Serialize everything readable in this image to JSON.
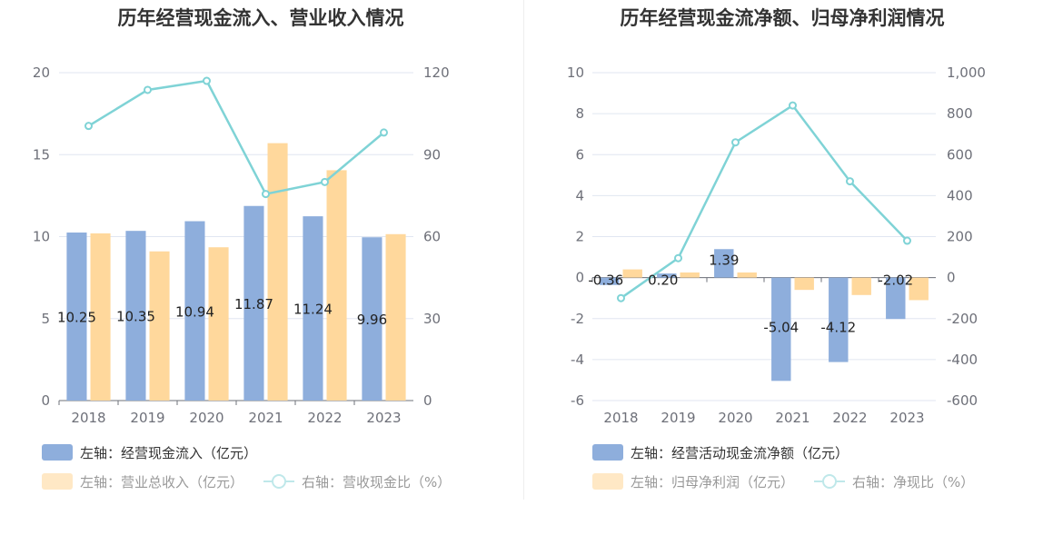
{
  "chart_data": [
    {
      "type": "bar",
      "title": "历年经营现金流入、营业收入情况",
      "categories": [
        "2018",
        "2019",
        "2020",
        "2021",
        "2022",
        "2023"
      ],
      "y_left": {
        "ticks": [
          "0",
          "5",
          "10",
          "15",
          "20"
        ],
        "min": 0,
        "max": 20
      },
      "y_right": {
        "ticks": [
          "0",
          "30",
          "60",
          "90",
          "120"
        ],
        "min": 0,
        "max": 120
      },
      "series": [
        {
          "name": "左轴：经营现金流入（亿元）",
          "kind": "bar",
          "axis": "left",
          "color": "#8eaedc",
          "values": [
            10.25,
            10.35,
            10.94,
            11.87,
            11.24,
            9.96
          ],
          "labels": [
            "10.25",
            "10.35",
            "10.94",
            "11.87",
            "11.24",
            "9.96"
          ]
        },
        {
          "name": "左轴：营业总收入（亿元）",
          "kind": "bar",
          "axis": "left",
          "color": "#ffd89c",
          "values": [
            10.2,
            9.1,
            9.35,
            15.7,
            14.05,
            10.15
          ]
        },
        {
          "name": "右轴：营收现金比（%）",
          "kind": "line",
          "axis": "right",
          "color": "#7fd3d6",
          "values": [
            100.5,
            113.7,
            117.0,
            75.6,
            80.0,
            98.1
          ]
        }
      ],
      "legend": {
        "position": "bottom-left",
        "muted_series": [
          1,
          2
        ]
      }
    },
    {
      "type": "bar",
      "title": "历年经营现金流净额、归母净利润情况",
      "categories": [
        "2018",
        "2019",
        "2020",
        "2021",
        "2022",
        "2023"
      ],
      "y_left": {
        "ticks": [
          "-6",
          "-4",
          "-2",
          "0",
          "2",
          "4",
          "6",
          "8",
          "10"
        ],
        "min": -6,
        "max": 10
      },
      "y_right": {
        "ticks": [
          "-600",
          "-400",
          "-200",
          "0",
          "200",
          "400",
          "600",
          "800",
          "1,000"
        ],
        "min": -600,
        "max": 1000
      },
      "series": [
        {
          "name": "左轴：经营活动现金流净额（亿元）",
          "kind": "bar",
          "axis": "left",
          "color": "#8eaedc",
          "values": [
            -0.36,
            0.2,
            1.39,
            -5.04,
            -4.12,
            -2.02
          ],
          "labels": [
            "-0.36",
            "0.20",
            "1.39",
            "-5.04",
            "-4.12",
            "-2.02"
          ]
        },
        {
          "name": "左轴：归母净利润（亿元）",
          "kind": "bar",
          "axis": "left",
          "color": "#ffd89c",
          "values": [
            0.4,
            0.25,
            0.25,
            -0.6,
            -0.85,
            -1.1
          ]
        },
        {
          "name": "右轴：净现比（%）",
          "kind": "line",
          "axis": "right",
          "color": "#7fd3d6",
          "values": [
            -100,
            95,
            660,
            840,
            470,
            180
          ]
        }
      ],
      "legend": {
        "position": "bottom-left",
        "muted_series": [
          1,
          2
        ]
      }
    }
  ]
}
